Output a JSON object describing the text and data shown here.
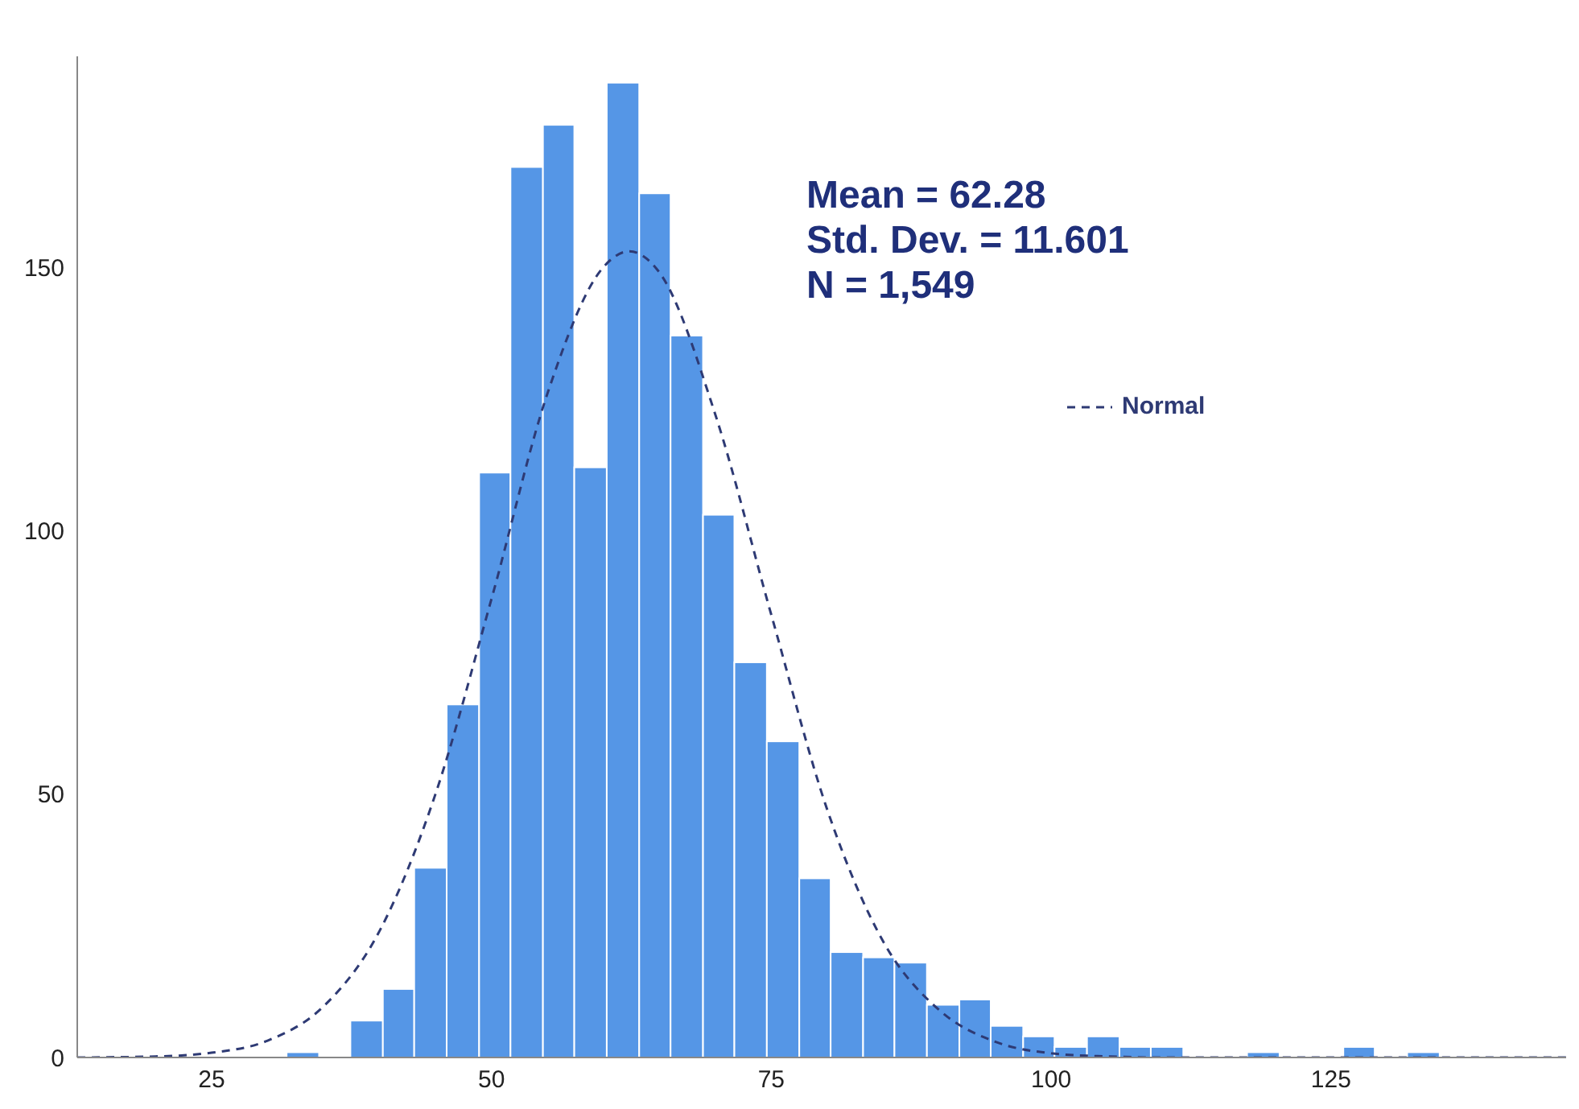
{
  "chart_data": {
    "type": "histogram",
    "bins": [
      31.7,
      34.6,
      37.4,
      40.3,
      43.1,
      46.0,
      48.9,
      51.7,
      54.6,
      57.4,
      60.3,
      63.2,
      66.0,
      68.9,
      71.7,
      74.6,
      77.5,
      80.3,
      83.2,
      86.0,
      88.9,
      91.8,
      94.6,
      97.5,
      100.3,
      103.2,
      106.1,
      108.9,
      111.8,
      117.5,
      120.4,
      126.1,
      128.9,
      131.8,
      134.7
    ],
    "values": [
      1,
      0,
      7,
      13,
      36,
      67,
      111,
      169,
      177,
      112,
      185,
      164,
      137,
      103,
      75,
      60,
      34,
      20,
      19,
      18,
      10,
      11,
      6,
      4,
      2,
      4,
      2,
      2,
      0,
      1,
      0,
      2,
      0,
      1
    ],
    "color": "#5596e6",
    "series": [
      {
        "type": "line",
        "name": "Normal",
        "color": "#2e3a74",
        "line_style": "dashed",
        "x": [
          13,
          20,
          25,
          30,
          35,
          40,
          45,
          50,
          55,
          60,
          62.3,
          65,
          70,
          75,
          80,
          85,
          90,
          95,
          100,
          105,
          110,
          146
        ],
        "values": [
          0,
          0.2,
          0.9,
          3.2,
          9.7,
          24,
          50,
          87,
          126,
          150,
          153,
          149,
          122,
          84,
          47,
          22,
          9,
          3,
          0.8,
          0.2,
          0,
          0
        ]
      }
    ],
    "xlim": [
      13,
      146
    ],
    "xticks": [
      25,
      50,
      75,
      100,
      125
    ],
    "ylim": [
      0,
      190
    ],
    "yticks": [
      0,
      50,
      100,
      150
    ],
    "legend": "top right",
    "marker": "none",
    "annotations": [
      "Mean = 62.28",
      "Std. Dev. = 11.601",
      "N = 1,549"
    ]
  }
}
